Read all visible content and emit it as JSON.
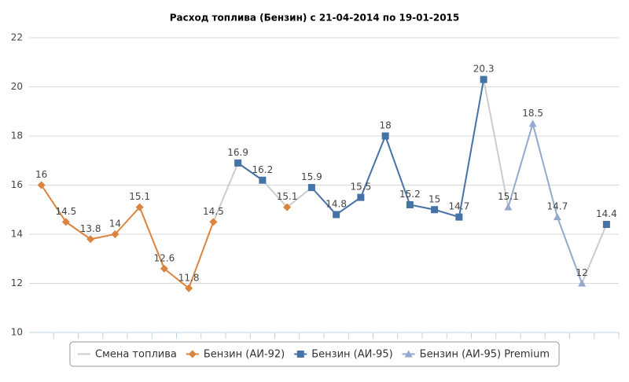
{
  "chart_data": {
    "type": "line",
    "title": "Расход топлива (Бензин) с 21-04-2014 по 19-01-2015",
    "categories": [
      null,
      null,
      null,
      null,
      null,
      null,
      null,
      null,
      null,
      null,
      null,
      null,
      null,
      null,
      null,
      null,
      null,
      null,
      null,
      null,
      null,
      null,
      null,
      null
    ],
    "ylim": [
      10,
      22
    ],
    "yticks": [
      10,
      12,
      14,
      16,
      18,
      20,
      22
    ],
    "grid": true,
    "legend": "bottom",
    "series": [
      {
        "name": "Смена топлива",
        "color": "#cccccc",
        "marker": "none",
        "values": [
          null,
          null,
          null,
          null,
          null,
          null,
          null,
          14.5,
          16.9,
          16.2,
          15.1,
          15.9,
          null,
          null,
          null,
          null,
          null,
          null,
          20.3,
          15.1,
          null,
          null,
          12,
          14.4
        ]
      },
      {
        "name": "Бензин (АИ-92)",
        "color": "#db843d",
        "marker": "diamond",
        "values": [
          16,
          14.5,
          13.8,
          14,
          15.1,
          12.6,
          11.8,
          14.5,
          null,
          null,
          15.1,
          null,
          null,
          null,
          null,
          null,
          null,
          null,
          null,
          null,
          null,
          null,
          null,
          null
        ]
      },
      {
        "name": "Бензин (АИ-95)",
        "color": "#4572a7",
        "marker": "square",
        "values": [
          null,
          null,
          null,
          null,
          null,
          null,
          null,
          null,
          16.9,
          16.2,
          null,
          15.9,
          14.8,
          15.5,
          18,
          15.2,
          15,
          14.7,
          20.3,
          null,
          null,
          null,
          null,
          14.4
        ]
      },
      {
        "name": "Бензин (АИ-95) Premium",
        "color": "#93a9cf",
        "marker": "triangle",
        "values": [
          null,
          null,
          null,
          null,
          null,
          null,
          null,
          null,
          null,
          null,
          null,
          null,
          null,
          null,
          null,
          null,
          null,
          null,
          null,
          15.1,
          18.5,
          14.7,
          12,
          null
        ]
      }
    ]
  }
}
